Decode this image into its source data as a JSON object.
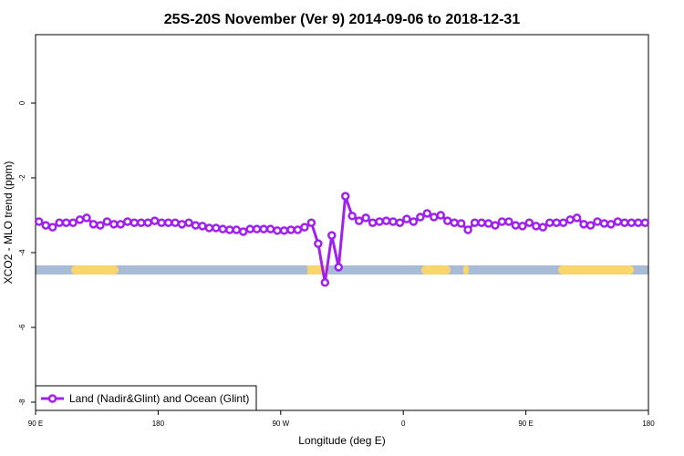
{
  "chart_data": {
    "type": "line",
    "title": "25S-20S November (Ver 9)   2014-09-06 to 2018-12-31",
    "x_label": "Longitude (deg E)",
    "y_label": "XCO2 - MLO trend (ppm)",
    "xlim": [
      90,
      540
    ],
    "ylim": [
      -8.22,
      1.83
    ],
    "xticks": [
      {
        "value": 90,
        "label": "90 E"
      },
      180,
      {
        "value": 270,
        "label": "90 W"
      },
      {
        "value": 360,
        "label": "0"
      },
      {
        "value": 450,
        "label": "90 E"
      },
      {
        "value": 540,
        "label": "180"
      }
    ],
    "yticks": [
      -8,
      -6,
      -4,
      -2,
      0
    ],
    "x": [
      92.5,
      97.5,
      102.5,
      107.5,
      112.5,
      117.5,
      122.5,
      127.5,
      132.5,
      137.5,
      142.5,
      147.5,
      152.5,
      157.5,
      162.5,
      167.5,
      172.5,
      177.5,
      182.5,
      187.5,
      192.5,
      197.5,
      202.5,
      207.5,
      212.5,
      217.5,
      222.5,
      227.5,
      232.5,
      237.5,
      242.5,
      247.5,
      252.5,
      257.5,
      262.5,
      267.5,
      272.5,
      277.5,
      282.5,
      287.5,
      292.5,
      297.5,
      302.5,
      307.5,
      312.5,
      317.5,
      322.5,
      327.5,
      332.5,
      337.5,
      342.5,
      347.5,
      352.5,
      357.5,
      362.5,
      367.5,
      372.5,
      377.5,
      382.5,
      387.5,
      392.5,
      397.5,
      402.5,
      407.5,
      412.5,
      417.5,
      422.5,
      427.5,
      432.5,
      437.5,
      442.5,
      447.5,
      452.5,
      457.5,
      462.5,
      467.5,
      472.5,
      477.5,
      482.5,
      487.5,
      492.5,
      497.5,
      502.5,
      507.5,
      512.5,
      517.5,
      522.5,
      527.5,
      532.5,
      537.5
    ],
    "series": [
      {
        "name": "Land (Nadir&Glint) and Ocean (Glint)",
        "color": "#a020f0",
        "values": [
          -3.17,
          -3.27,
          -3.32,
          -3.2,
          -3.2,
          -3.2,
          -3.12,
          -3.07,
          -3.24,
          -3.27,
          -3.17,
          -3.24,
          -3.24,
          -3.17,
          -3.2,
          -3.2,
          -3.2,
          -3.15,
          -3.2,
          -3.2,
          -3.2,
          -3.24,
          -3.2,
          -3.27,
          -3.29,
          -3.34,
          -3.34,
          -3.37,
          -3.39,
          -3.39,
          -3.44,
          -3.37,
          -3.37,
          -3.37,
          -3.37,
          -3.41,
          -3.41,
          -3.39,
          -3.39,
          -3.32,
          -3.2,
          -3.76,
          -4.8,
          -3.54,
          -4.39,
          -2.49,
          -3.02,
          -3.15,
          -3.07,
          -3.2,
          -3.17,
          -3.15,
          -3.17,
          -3.2,
          -3.1,
          -3.17,
          -3.05,
          -2.95,
          -3.05,
          -3.0,
          -3.15,
          -3.2,
          -3.22,
          -3.39,
          -3.2,
          -3.2,
          -3.22,
          -3.27,
          -3.17,
          -3.17,
          -3.27,
          -3.29,
          -3.2,
          -3.29,
          -3.32,
          -3.2,
          -3.2,
          -3.2,
          -3.12,
          -3.07,
          -3.24,
          -3.27,
          -3.17,
          -3.22,
          -3.24,
          -3.17,
          -3.2,
          -3.2,
          -3.2,
          -3.2
        ]
      }
    ]
  }
}
